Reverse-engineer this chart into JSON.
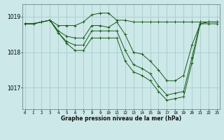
{
  "title": "Graphe pression niveau de la mer (hPa)",
  "bg_color": "#cce8e8",
  "grid_color": "#aacccc",
  "line_color": "#1a5c1a",
  "series": [
    {
      "x": [
        0,
        1,
        2,
        3,
        4,
        5,
        6,
        7,
        8,
        9,
        10,
        11,
        12,
        13,
        14,
        15,
        16,
        17,
        18,
        19,
        20,
        21,
        22,
        23
      ],
      "y": [
        1018.8,
        1018.8,
        1018.85,
        1018.9,
        1018.75,
        1018.75,
        1018.75,
        1018.85,
        1019.05,
        1019.1,
        1019.1,
        1018.9,
        1018.9,
        1018.85,
        1018.85,
        1018.85,
        1018.85,
        1018.85,
        1018.85,
        1018.85,
        1018.85,
        1018.85,
        1018.85,
        1018.85
      ]
    },
    {
      "x": [
        0,
        1,
        2,
        3,
        4,
        5,
        6,
        7,
        8,
        9,
        10,
        11,
        12,
        13,
        14,
        15,
        16,
        17,
        18,
        19,
        20,
        21,
        22,
        23
      ],
      "y": [
        1018.8,
        1018.8,
        1018.85,
        1018.9,
        1018.6,
        1018.45,
        1018.4,
        1018.4,
        1018.75,
        1018.75,
        1018.7,
        1018.85,
        1018.5,
        1018.0,
        1017.95,
        1017.75,
        1017.5,
        1017.2,
        1017.2,
        1017.35,
        1018.2,
        1018.8,
        1018.85,
        1018.85
      ]
    },
    {
      "x": [
        0,
        1,
        2,
        3,
        4,
        5,
        6,
        7,
        8,
        9,
        10,
        11,
        12,
        13,
        14,
        15,
        16,
        17,
        18,
        19,
        20,
        21,
        22,
        23
      ],
      "y": [
        1018.8,
        1018.8,
        1018.85,
        1018.9,
        1018.55,
        1018.3,
        1018.2,
        1018.2,
        1018.6,
        1018.6,
        1018.6,
        1018.6,
        1018.05,
        1017.65,
        1017.55,
        1017.4,
        1017.05,
        1016.8,
        1016.85,
        1016.9,
        1017.85,
        1018.85,
        1018.85,
        1018.85
      ]
    },
    {
      "x": [
        0,
        1,
        2,
        3,
        4,
        5,
        6,
        7,
        8,
        9,
        10,
        11,
        12,
        13,
        14,
        15,
        16,
        17,
        18,
        19,
        20,
        21,
        22,
        23
      ],
      "y": [
        1018.8,
        1018.8,
        1018.85,
        1018.9,
        1018.55,
        1018.25,
        1018.05,
        1018.05,
        1018.4,
        1018.4,
        1018.4,
        1018.4,
        1017.75,
        1017.45,
        1017.35,
        1017.2,
        1016.9,
        1016.65,
        1016.7,
        1016.75,
        1017.7,
        1018.8,
        1018.8,
        1018.8
      ]
    }
  ],
  "yticks": [
    1017,
    1018,
    1019
  ],
  "xticks": [
    0,
    1,
    2,
    3,
    4,
    5,
    6,
    7,
    8,
    9,
    10,
    11,
    12,
    13,
    14,
    15,
    16,
    17,
    18,
    19,
    20,
    21,
    22,
    23
  ],
  "ylim": [
    1016.4,
    1019.35
  ],
  "xlim": [
    -0.3,
    23.3
  ],
  "figsize": [
    3.2,
    2.0
  ],
  "dpi": 100
}
